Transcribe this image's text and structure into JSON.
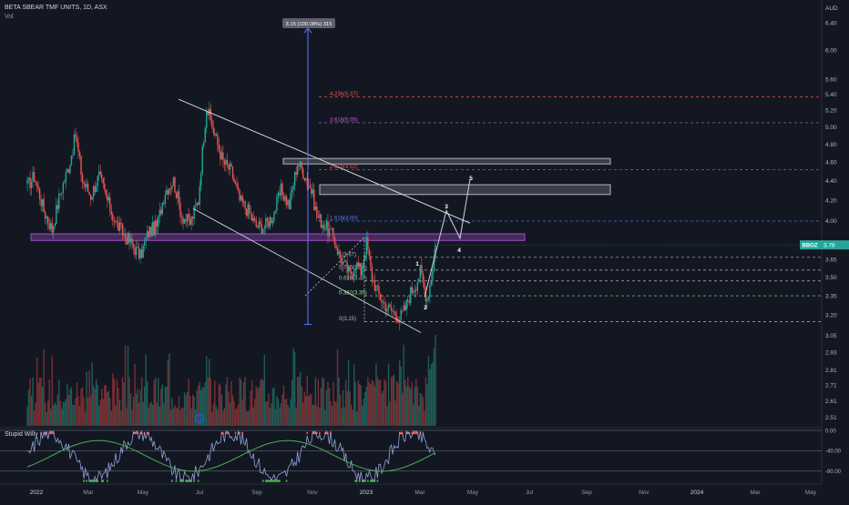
{
  "header": {
    "title": "BETA SBEAR TMF UNITS, 1D, ASX",
    "volume_label": "Vol",
    "currency": "AUD"
  },
  "indicator": {
    "name": "Stupid Willy",
    "levels": [
      "0.00",
      "-40.00",
      "-80.00"
    ]
  },
  "badges": {
    "symbol": "BBOZ",
    "last_price": "3.78",
    "measure_label": "3.15 (100.08%) 315"
  },
  "colors": {
    "background": "#131722",
    "up": "#26a69a",
    "down": "#ef5350",
    "fib_blue": "#5b7bff",
    "zone_purple": "#a14ec7",
    "zone_grey": "#b2b5be"
  },
  "chart_data": {
    "type": "candlestick",
    "title": "BETA SBEAR TMF UNITS, 1D, ASX",
    "y_axis": {
      "min": 2.45,
      "max": 6.7,
      "scale": "log",
      "ticks": [
        "6.40",
        "6.00",
        "5.60",
        "5.40",
        "5.20",
        "5.00",
        "4.80",
        "4.60",
        "4.40",
        "4.20",
        "4.00",
        "3.80",
        "3.65",
        "3.50",
        "3.35",
        "3.20",
        "3.05",
        "2.93",
        "2.81",
        "2.71",
        "2.61",
        "2.51"
      ]
    },
    "x_axis": {
      "ticks": [
        "2022",
        "Mar",
        "May",
        "Jul",
        "Sep",
        "Nov",
        "2023",
        "Mar",
        "May",
        "Jul",
        "Sep",
        "Nov",
        "2024",
        "Mar",
        "May"
      ]
    },
    "anchors": [
      {
        "i": 0,
        "p": 4.35
      },
      {
        "i": 5,
        "p": 4.45
      },
      {
        "i": 12,
        "p": 4.1
      },
      {
        "i": 18,
        "p": 3.92
      },
      {
        "i": 24,
        "p": 4.28
      },
      {
        "i": 30,
        "p": 4.55
      },
      {
        "i": 35,
        "p": 4.9
      },
      {
        "i": 40,
        "p": 4.4
      },
      {
        "i": 46,
        "p": 4.25
      },
      {
        "i": 52,
        "p": 4.45
      },
      {
        "i": 58,
        "p": 4.2
      },
      {
        "i": 64,
        "p": 3.98
      },
      {
        "i": 70,
        "p": 3.88
      },
      {
        "i": 76,
        "p": 3.78
      },
      {
        "i": 82,
        "p": 3.68
      },
      {
        "i": 88,
        "p": 3.9
      },
      {
        "i": 94,
        "p": 3.95
      },
      {
        "i": 100,
        "p": 4.3
      },
      {
        "i": 106,
        "p": 4.4
      },
      {
        "i": 112,
        "p": 4.05
      },
      {
        "i": 118,
        "p": 3.98
      },
      {
        "i": 124,
        "p": 4.2
      },
      {
        "i": 130,
        "p": 5.25
      },
      {
        "i": 136,
        "p": 4.9
      },
      {
        "i": 142,
        "p": 4.6
      },
      {
        "i": 148,
        "p": 4.5
      },
      {
        "i": 154,
        "p": 4.2
      },
      {
        "i": 160,
        "p": 4.1
      },
      {
        "i": 166,
        "p": 3.95
      },
      {
        "i": 172,
        "p": 3.95
      },
      {
        "i": 178,
        "p": 4.05
      },
      {
        "i": 184,
        "p": 4.3
      },
      {
        "i": 190,
        "p": 4.15
      },
      {
        "i": 196,
        "p": 4.6
      },
      {
        "i": 200,
        "p": 4.5
      },
      {
        "i": 206,
        "p": 4.3
      },
      {
        "i": 210,
        "p": 4.05
      },
      {
        "i": 216,
        "p": 3.95
      },
      {
        "i": 222,
        "p": 3.85
      },
      {
        "i": 226,
        "p": 3.7
      },
      {
        "i": 230,
        "p": 3.6
      },
      {
        "i": 234,
        "p": 3.52
      },
      {
        "i": 238,
        "p": 3.62
      },
      {
        "i": 242,
        "p": 3.55
      },
      {
        "i": 246,
        "p": 3.8
      },
      {
        "i": 250,
        "p": 3.5
      },
      {
        "i": 254,
        "p": 3.38
      },
      {
        "i": 258,
        "p": 3.3
      },
      {
        "i": 262,
        "p": 3.25
      },
      {
        "i": 266,
        "p": 3.22
      },
      {
        "i": 270,
        "p": 3.18
      },
      {
        "i": 274,
        "p": 3.25
      },
      {
        "i": 278,
        "p": 3.38
      },
      {
        "i": 282,
        "p": 3.45
      },
      {
        "i": 285,
        "p": 3.55
      },
      {
        "i": 288,
        "p": 3.4
      },
      {
        "i": 290,
        "p": 3.33
      },
      {
        "i": 293,
        "p": 3.5
      },
      {
        "i": 296,
        "p": 3.78
      }
    ],
    "fibonacci": [
      {
        "label": "4.236(5.37)",
        "price": 5.37,
        "color": "#ef5350"
      },
      {
        "label": "3.618(5.05)",
        "price": 5.05,
        "color": "#c163d6"
      },
      {
        "label": "2.618(4.52)",
        "price": 4.52,
        "color": "#ef5350"
      },
      {
        "label": "1.618(4.00)",
        "price": 4.0,
        "color": "#5b7bff"
      },
      {
        "label": "1(3.67)",
        "price": 3.67,
        "color": "#b2b5be"
      },
      {
        "label": "0.786(3.56)",
        "price": 3.56,
        "color": "#b2b5be"
      },
      {
        "label": "0.618(3.47)",
        "price": 3.47,
        "color": "#b2b5be"
      },
      {
        "label": "0.382(3.35)",
        "price": 3.35,
        "color": "#9be38b"
      },
      {
        "label": "0(3.15)",
        "price": 3.15,
        "color": "#b2b5be"
      }
    ],
    "zones": [
      {
        "from": 3.82,
        "to": 3.88,
        "color": "purple"
      },
      {
        "from": 4.58,
        "to": 4.64,
        "color": "grey"
      },
      {
        "from": 4.26,
        "to": 4.36,
        "color": "grey"
      }
    ],
    "wave_labels": [
      "1",
      "2",
      "3",
      "4",
      "5"
    ],
    "measure": {
      "label": "3.15 (100.08%) 315"
    }
  }
}
